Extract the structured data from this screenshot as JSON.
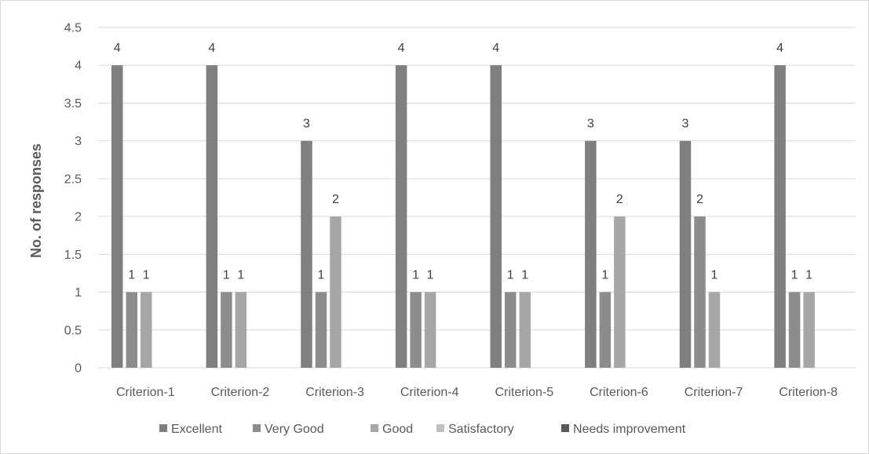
{
  "chart_data": {
    "type": "bar",
    "title": "",
    "xlabel": "",
    "ylabel": "No. of responses",
    "ylim": [
      0,
      4.5
    ],
    "yticks": [
      "0",
      "0.5",
      "1",
      "1.5",
      "2",
      "2.5",
      "3",
      "3.5",
      "4",
      "4.5"
    ],
    "grid": true,
    "legend_position": "bottom",
    "categories": [
      "Criterion-1",
      "Criterion-2",
      "Criterion-3",
      "Criterion-4",
      "Criterion-5",
      "Criterion-6",
      "Criterion-7",
      "Criterion-8"
    ],
    "series": [
      {
        "name": "Excellent",
        "color": "#7f7f7f",
        "values": [
          4,
          4,
          3,
          4,
          4,
          3,
          3,
          4
        ]
      },
      {
        "name": "Very Good",
        "color": "#8c8c8c",
        "values": [
          1,
          1,
          1,
          1,
          1,
          1,
          2,
          1
        ]
      },
      {
        "name": "Good",
        "color": "#a6a6a6",
        "values": [
          1,
          1,
          2,
          1,
          1,
          2,
          1,
          1
        ]
      },
      {
        "name": "Satisfactory",
        "color": "#bfbfbf",
        "values": [
          0,
          0,
          0,
          0,
          0,
          0,
          0,
          0
        ]
      },
      {
        "name": "Needs improvement",
        "color": "#595959",
        "values": [
          0,
          0,
          0,
          0,
          0,
          0,
          0,
          0
        ]
      }
    ]
  }
}
